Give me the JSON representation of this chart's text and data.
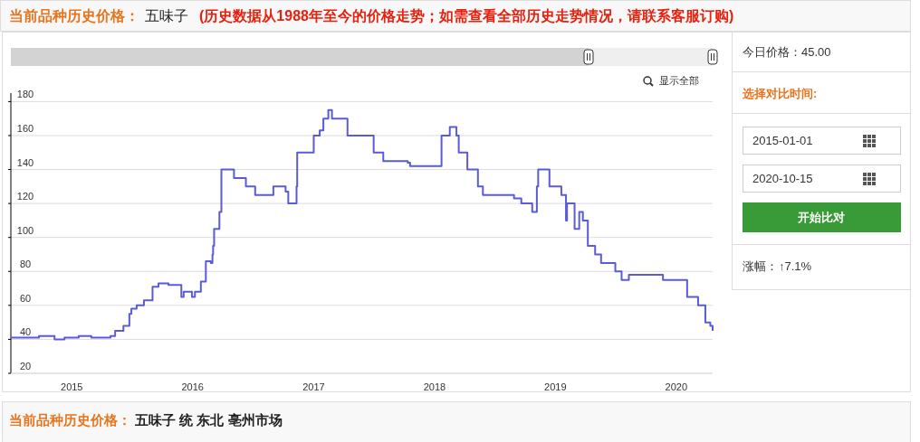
{
  "chart_data": {
    "type": "step",
    "title": "当前品种历史价格：",
    "subtitle": "五味子",
    "annotations": [
      "(历史数据从1988年至今的价格走势；如需查看全部历史走势情况，请联系客服订购)",
      "显示全部",
      "今日价格：45.00",
      "选择对比时间:",
      "2015-01-01",
      "2020-10-15",
      "开始比对",
      "涨幅：",
      "↑7.1%",
      "当前品种历史价格：",
      "五味子 统 东北 亳州市场"
    ],
    "x": [
      "2014-07-01",
      "2014-09-24",
      "2014-11-10",
      "2014-12-10",
      "2015-01-22",
      "2015-03-01",
      "2015-04-28",
      "2015-05-12",
      "2015-06-06",
      "2015-06-24",
      "2015-06-30",
      "2015-07-16",
      "2015-08-07",
      "2015-09-02",
      "2015-09-20",
      "2015-10-20",
      "2015-11-28",
      "2015-12-05",
      "2015-12-30",
      "2016-01-08",
      "2016-01-26",
      "2016-02-10",
      "2016-02-25",
      "2016-03-01",
      "2016-03-03",
      "2016-03-06",
      "2016-03-22",
      "2016-03-28",
      "2016-05-05",
      "2016-06-10",
      "2016-07-08",
      "2016-09-01",
      "2016-10-08",
      "2016-10-16",
      "2016-11-10",
      "2016-11-12",
      "2017-01-01",
      "2017-01-19",
      "2017-01-30",
      "2017-02-14",
      "2017-02-25",
      "2017-04-13",
      "2017-07-01",
      "2017-07-30",
      "2017-10-12",
      "2017-10-19",
      "2018-01-22",
      "2018-02-16",
      "2018-03-08",
      "2018-03-15",
      "2018-04-10",
      "2018-05-12",
      "2018-05-27",
      "2018-08-29",
      "2018-09-20",
      "2018-10-23",
      "2018-11-06",
      "2018-11-10",
      "2018-12-14",
      "2019-01-19",
      "2019-02-02",
      "2019-02-05",
      "2019-02-28",
      "2019-03-14",
      "2019-03-25",
      "2019-04-09",
      "2019-05-01",
      "2019-05-19",
      "2019-07-01",
      "2019-07-20",
      "2019-08-11",
      "2019-11-22",
      "2020-02-03",
      "2020-03-07",
      "2020-03-29",
      "2020-04-13",
      "2020-04-20"
    ],
    "series": [
      {
        "color": "#5b5bd9",
        "values": [
          41,
          42,
          40,
          41,
          42,
          41,
          42,
          45,
          48,
          55,
          58,
          60,
          63,
          71,
          73,
          72,
          65,
          68,
          65,
          68,
          74,
          86,
          85,
          90,
          95,
          105,
          115,
          140,
          135,
          130,
          125,
          130,
          127,
          120,
          130,
          150,
          160,
          163,
          170,
          175,
          170,
          160,
          150,
          145,
          144,
          142,
          160,
          165,
          160,
          150,
          140,
          130,
          125,
          123,
          120,
          115,
          130,
          140,
          130,
          125,
          110,
          120,
          105,
          115,
          110,
          95,
          90,
          85,
          80,
          75,
          78,
          75,
          65,
          60,
          50,
          48,
          45
        ]
      }
    ],
    "xlim": [
      "2014-07-01",
      "2020-04-20"
    ],
    "xticks": [
      {
        "value": "2015-01-01",
        "label": "2015"
      },
      {
        "value": "2016-01-01",
        "label": "2016"
      },
      {
        "value": "2017-01-01",
        "label": "2017"
      },
      {
        "value": "2018-01-01",
        "label": "2018"
      },
      {
        "value": "2019-01-01",
        "label": "2019"
      },
      {
        "value": "2020-01-01",
        "label": "2020"
      }
    ],
    "ylim": [
      20,
      185
    ],
    "yticks": [
      20,
      40,
      60,
      80,
      100,
      120,
      140,
      160,
      180
    ],
    "grid": "y"
  }
}
